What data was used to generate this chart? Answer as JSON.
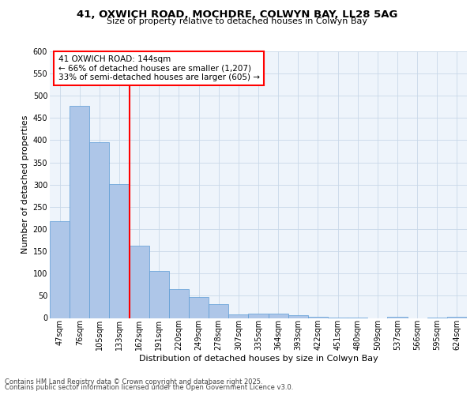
{
  "title1": "41, OXWICH ROAD, MOCHDRE, COLWYN BAY, LL28 5AG",
  "title2": "Size of property relative to detached houses in Colwyn Bay",
  "xlabel": "Distribution of detached houses by size in Colwyn Bay",
  "ylabel": "Number of detached properties",
  "footer1": "Contains HM Land Registry data © Crown copyright and database right 2025.",
  "footer2": "Contains public sector information licensed under the Open Government Licence v3.0.",
  "bar_labels": [
    "47sqm",
    "76sqm",
    "105sqm",
    "133sqm",
    "162sqm",
    "191sqm",
    "220sqm",
    "249sqm",
    "278sqm",
    "307sqm",
    "335sqm",
    "364sqm",
    "393sqm",
    "422sqm",
    "451sqm",
    "480sqm",
    "509sqm",
    "537sqm",
    "566sqm",
    "595sqm",
    "624sqm"
  ],
  "bar_values": [
    218,
    478,
    395,
    301,
    162,
    106,
    65,
    47,
    32,
    8,
    10,
    10,
    7,
    3,
    1,
    1,
    0,
    2,
    0,
    1,
    3
  ],
  "bar_color": "#aec6e8",
  "bar_edge_color": "#5b9bd5",
  "vline_x": 3.5,
  "vline_color": "red",
  "annotation_text": "41 OXWICH ROAD: 144sqm\n← 66% of detached houses are smaller (1,207)\n33% of semi-detached houses are larger (605) →",
  "annotation_box_color": "white",
  "annotation_box_edge": "red",
  "ylim": [
    0,
    600
  ],
  "yticks": [
    0,
    50,
    100,
    150,
    200,
    250,
    300,
    350,
    400,
    450,
    500,
    550,
    600
  ],
  "grid_color": "#c8d8e8",
  "bg_color": "#eef4fb",
  "title1_fontsize": 9.5,
  "title2_fontsize": 8.0,
  "ylabel_fontsize": 8.0,
  "xlabel_fontsize": 8.0,
  "tick_fontsize": 7.0,
  "annot_fontsize": 7.5,
  "footer_fontsize": 6.0
}
